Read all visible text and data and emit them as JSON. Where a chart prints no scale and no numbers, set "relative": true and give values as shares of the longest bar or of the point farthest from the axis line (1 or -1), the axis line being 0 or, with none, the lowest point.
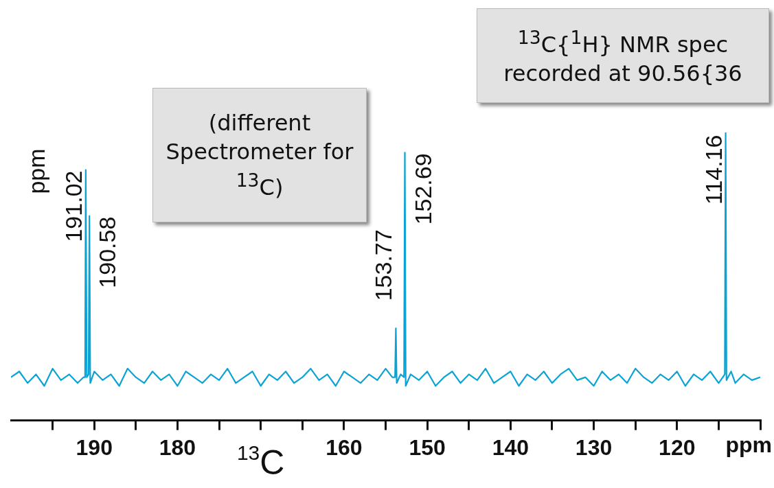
{
  "chart_data": {
    "type": "line",
    "relative": true,
    "xlabel": "$^{13}$C",
    "xlim": [
      200,
      110
    ],
    "xticks": [
      {
        "value": 195,
        "label": null
      },
      190,
      {
        "value": 185,
        "label": null
      },
      180,
      {
        "value": 175,
        "label": null
      },
      {
        "value": 170,
        "label": null
      },
      {
        "value": 165,
        "label": null
      },
      160,
      {
        "value": 155,
        "label": null
      },
      150,
      {
        "value": 145,
        "label": null
      },
      140,
      {
        "value": 135,
        "label": null
      },
      130,
      {
        "value": 125,
        "label": null
      },
      120,
      {
        "value": 115,
        "label": null
      },
      {
        "value": 110,
        "label": null
      }
    ],
    "grid": false,
    "legend": false,
    "series": [
      {
        "color": "#0aa3d3",
        "x": [
          200,
          199,
          198,
          197,
          196,
          195,
          194,
          193,
          192,
          191.3,
          191.1,
          191.02,
          190.9,
          190.68,
          190.58,
          190.48,
          190,
          189,
          188,
          187,
          186,
          185,
          184,
          183,
          182,
          181,
          180,
          179,
          178,
          177,
          176,
          175,
          174,
          173,
          172,
          171,
          170,
          169,
          168,
          167,
          166,
          165,
          164,
          163,
          162,
          161,
          160,
          159,
          158,
          157,
          156,
          155,
          154.2,
          153.87,
          153.77,
          153.67,
          153.2,
          152.79,
          152.69,
          152.59,
          152,
          151,
          150,
          149,
          148,
          147,
          146,
          145,
          144,
          143,
          142,
          141,
          140,
          139,
          138,
          137,
          136,
          135,
          134,
          133,
          132,
          131,
          130,
          129,
          128,
          127,
          126,
          125,
          124,
          123,
          122,
          121,
          120,
          119,
          118,
          117,
          116,
          115,
          114.5,
          114.26,
          114.16,
          114.06,
          113.5,
          113,
          112,
          111,
          110
        ],
        "values": [
          0.15,
          0.17,
          0.13,
          0.16,
          0.12,
          0.18,
          0.14,
          0.16,
          0.13,
          0.15,
          0.15,
          0.87,
          0.15,
          0.16,
          0.71,
          0.13,
          0.17,
          0.14,
          0.16,
          0.12,
          0.18,
          0.15,
          0.13,
          0.17,
          0.14,
          0.16,
          0.12,
          0.17,
          0.15,
          0.13,
          0.16,
          0.14,
          0.18,
          0.13,
          0.15,
          0.17,
          0.12,
          0.16,
          0.14,
          0.17,
          0.13,
          0.15,
          0.18,
          0.14,
          0.16,
          0.12,
          0.17,
          0.15,
          0.13,
          0.16,
          0.14,
          0.18,
          0.15,
          0.15,
          0.32,
          0.13,
          0.16,
          0.15,
          0.93,
          0.12,
          0.16,
          0.14,
          0.17,
          0.12,
          0.15,
          0.17,
          0.13,
          0.16,
          0.14,
          0.18,
          0.13,
          0.15,
          0.17,
          0.12,
          0.16,
          0.14,
          0.17,
          0.13,
          0.16,
          0.18,
          0.14,
          0.15,
          0.12,
          0.17,
          0.14,
          0.16,
          0.13,
          0.18,
          0.15,
          0.13,
          0.16,
          0.14,
          0.17,
          0.12,
          0.16,
          0.14,
          0.17,
          0.13,
          0.15,
          0.16,
          1,
          0.14,
          0.17,
          0.13,
          0.16,
          0.14,
          0.15
        ]
      }
    ],
    "annotations": [
      {
        "text": "191.02",
        "x": 191.02,
        "y": 0.87
      },
      {
        "text": "190.58",
        "x": 190.58,
        "y": 0.71
      },
      {
        "text": "153.77",
        "x": 153.77,
        "y": 0.32
      },
      {
        "text": "152.69",
        "x": 152.69,
        "y": 0.93
      },
      {
        "text": "114.16",
        "x": 114.16,
        "y": 1
      },
      "ppm",
      "(different Spectrometer for $^{13}$C)",
      "$^{13}$C{$^{1}$H} NMR spec\nrecorded at 90.56{36",
      "ppm"
    ]
  }
}
